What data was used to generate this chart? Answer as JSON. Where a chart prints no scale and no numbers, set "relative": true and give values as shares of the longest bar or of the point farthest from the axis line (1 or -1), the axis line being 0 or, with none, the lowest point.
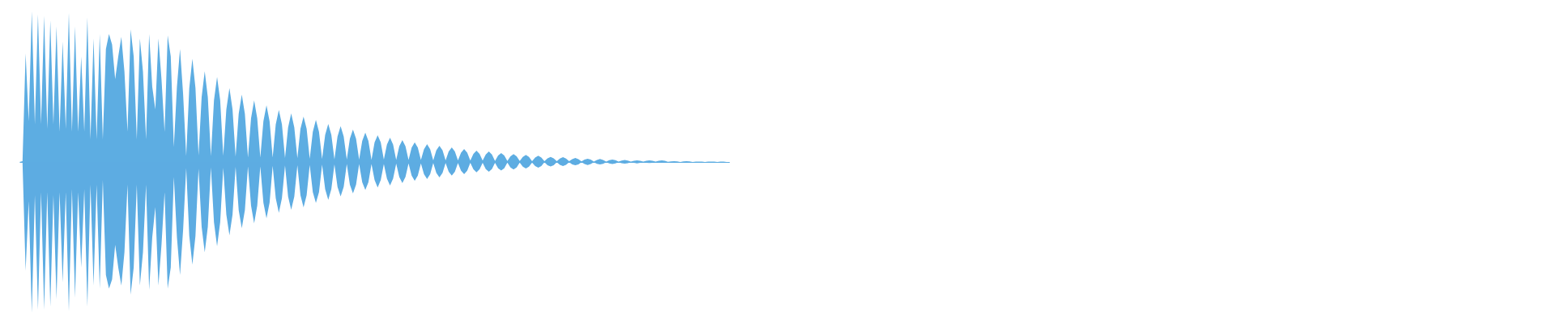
{
  "chart_data": {
    "type": "area",
    "relative": true,
    "categories": [
      null,
      null,
      null,
      null,
      null,
      null,
      null,
      null,
      null,
      null,
      null,
      null,
      null,
      null,
      null,
      null,
      null,
      null,
      null,
      null,
      null,
      null,
      null,
      null,
      null,
      null,
      null,
      null,
      null,
      null,
      null,
      null,
      null,
      null,
      null,
      null,
      null,
      null,
      null,
      null,
      null,
      null,
      null,
      null,
      null,
      null,
      null,
      null,
      null,
      null,
      null,
      null,
      null,
      null,
      null,
      null,
      null,
      null,
      null,
      null,
      null,
      null,
      null,
      null,
      null,
      null,
      null,
      null,
      null,
      null,
      null,
      null,
      null,
      null,
      null,
      null,
      null,
      null,
      null,
      null,
      null,
      null,
      null,
      null,
      null,
      null,
      null,
      null,
      null,
      null,
      null,
      null,
      null,
      null,
      null,
      null,
      null,
      null,
      null,
      null,
      null,
      null,
      null,
      null,
      null,
      null,
      null,
      null,
      null,
      null,
      null,
      null,
      null,
      null,
      null,
      null,
      null,
      null,
      null,
      null,
      null,
      null,
      null,
      null,
      null,
      null,
      null,
      null,
      null,
      null,
      null,
      null,
      null,
      null,
      null,
      null,
      null,
      null,
      null,
      null,
      null,
      null,
      null,
      null,
      null,
      null,
      null,
      null,
      null,
      null,
      null,
      null,
      null,
      null,
      null,
      null,
      null,
      null,
      null,
      null,
      null,
      null,
      null,
      null,
      null,
      null,
      null,
      null,
      null,
      null,
      null,
      null,
      null,
      null,
      null,
      null,
      null,
      null,
      null,
      null,
      null,
      null,
      null,
      null,
      null,
      null,
      null,
      null,
      null,
      null,
      null,
      null,
      null,
      null,
      null,
      null,
      null,
      null,
      null,
      null,
      null,
      null,
      null,
      null,
      null,
      null,
      null,
      null,
      null,
      null,
      null,
      null,
      null,
      null,
      null,
      null,
      null,
      null,
      null,
      null,
      null,
      null,
      null,
      null,
      null,
      null,
      null,
      null,
      null,
      null,
      null
    ],
    "series": [
      {
        "color": "#5dade2",
        "values": [
          0,
          0.005,
          0.72,
          0.27,
          1.0,
          0.25,
          0.98,
          0.25,
          0.97,
          0.22,
          0.94,
          0.25,
          0.9,
          0.2,
          0.8,
          0.22,
          0.99,
          0.2,
          0.9,
          0.2,
          0.7,
          0.2,
          0.96,
          0.15,
          0.82,
          0.15,
          0.85,
          0.15,
          0.75,
          0.85,
          0.78,
          0.55,
          0.7,
          0.83,
          0.6,
          0.2,
          0.88,
          0.7,
          0.15,
          0.82,
          0.6,
          0.15,
          0.85,
          0.5,
          0.35,
          0.82,
          0.55,
          0.2,
          0.84,
          0.7,
          0.1,
          0.5,
          0.75,
          0.45,
          0.04,
          0.49,
          0.685,
          0.49,
          0.045,
          0.43,
          0.602,
          0.43,
          0.039,
          0.41,
          0.565,
          0.41,
          0.041,
          0.35,
          0.491,
          0.35,
          0.036,
          0.32,
          0.448,
          0.32,
          0.03,
          0.29,
          0.409,
          0.29,
          0.03,
          0.27,
          0.376,
          0.27,
          0.029,
          0.25,
          0.346,
          0.25,
          0.027,
          0.23,
          0.323,
          0.23,
          0.025,
          0.22,
          0.301,
          0.22,
          0.022,
          0.2,
          0.28,
          0.2,
          0.02,
          0.18,
          0.253,
          0.18,
          0.018,
          0.17,
          0.238,
          0.17,
          0.016,
          0.155,
          0.215,
          0.155,
          0.016,
          0.14,
          0.195,
          0.14,
          0.014,
          0.13,
          0.178,
          0.13,
          0.016,
          0.115,
          0.161,
          0.115,
          0.014,
          0.105,
          0.145,
          0.105,
          0.013,
          0.095,
          0.131,
          0.095,
          0.013,
          0.085,
          0.118,
          0.085,
          0.011,
          0.078,
          0.108,
          0.078,
          0.011,
          0.07,
          0.097,
          0.07,
          0.011,
          0.062,
          0.086,
          0.062,
          0.009,
          0.054,
          0.075,
          0.054,
          0.009,
          0.05,
          0.07,
          0.05,
          0.007,
          0.043,
          0.059,
          0.043,
          0.007,
          0.037,
          0.052,
          0.037,
          0.007,
          0.034,
          0.047,
          0.034,
          0.005,
          0.03,
          0.041,
          0.03,
          0.005,
          0.024,
          0.034,
          0.024,
          0.005,
          0.023,
          0.032,
          0.023,
          0.005,
          0.019,
          0.027,
          0.019,
          0.004,
          0.016,
          0.022,
          0.016,
          0.003,
          0.014,
          0.02,
          0.014,
          0.003,
          0.012,
          0.016,
          0.012,
          0.003,
          0.01,
          0.014,
          0.01,
          0.003,
          0.008,
          0.011,
          0.008,
          0.003,
          0.008,
          0.011,
          0.008,
          0.003,
          0.008,
          0.011,
          0.008,
          0.002,
          0.004,
          0.005,
          0.004,
          0,
          0.004,
          0.005,
          0.004,
          0,
          0.003,
          0.003,
          0.003,
          0,
          0.003,
          0.003,
          0.003,
          0,
          0.003,
          0.003,
          0,
          0
        ]
      },
      {
        "color": "#5dace2",
        "values": [
          0,
          -0.005,
          -0.72,
          -0.26,
          -1.0,
          -0.22,
          -0.98,
          -0.2,
          -0.98,
          -0.2,
          -0.96,
          -0.22,
          -0.91,
          -0.2,
          -0.8,
          -0.2,
          -0.99,
          -0.18,
          -0.9,
          -0.2,
          -0.7,
          -0.18,
          -0.96,
          -0.15,
          -0.82,
          -0.15,
          -0.84,
          -0.12,
          -0.75,
          -0.84,
          -0.78,
          -0.55,
          -0.7,
          -0.82,
          -0.6,
          -0.15,
          -0.88,
          -0.7,
          -0.15,
          -0.82,
          -0.6,
          -0.15,
          -0.85,
          -0.5,
          -0.3,
          -0.82,
          -0.55,
          -0.2,
          -0.84,
          -0.7,
          -0.1,
          -0.5,
          -0.75,
          -0.45,
          -0.04,
          -0.49,
          -0.681,
          -0.49,
          -0.045,
          -0.43,
          -0.6,
          -0.43,
          -0.036,
          -0.4,
          -0.559,
          -0.4,
          -0.039,
          -0.35,
          -0.487,
          -0.35,
          -0.032,
          -0.32,
          -0.439,
          -0.32,
          -0.03,
          -0.29,
          -0.407,
          -0.29,
          -0.029,
          -0.27,
          -0.373,
          -0.27,
          -0.025,
          -0.24,
          -0.337,
          -0.24,
          -0.023,
          -0.23,
          -0.317,
          -0.23,
          -0.022,
          -0.22,
          -0.301,
          -0.22,
          -0.02,
          -0.2,
          -0.272,
          -0.2,
          -0.018,
          -0.18,
          -0.251,
          -0.18,
          -0.016,
          -0.165,
          -0.229,
          -0.165,
          -0.014,
          -0.15,
          -0.208,
          -0.15,
          -0.014,
          -0.135,
          -0.186,
          -0.135,
          -0.013,
          -0.12,
          -0.17,
          -0.12,
          -0.013,
          -0.11,
          -0.156,
          -0.11,
          -0.011,
          -0.1,
          -0.14,
          -0.1,
          -0.009,
          -0.09,
          -0.125,
          -0.09,
          -0.009,
          -0.08,
          -0.113,
          -0.08,
          -0.007,
          -0.073,
          -0.102,
          -0.073,
          -0.007,
          -0.065,
          -0.09,
          -0.065,
          -0.007,
          -0.058,
          -0.081,
          -0.058,
          -0.005,
          -0.049,
          -0.068,
          -0.049,
          -0.005,
          -0.047,
          -0.065,
          -0.047,
          -0.005,
          -0.041,
          -0.057,
          -0.041,
          -0.004,
          -0.036,
          -0.05,
          -0.036,
          -0.004,
          -0.031,
          -0.043,
          -0.031,
          -0.004,
          -0.027,
          -0.038,
          -0.027,
          -0.002,
          -0.022,
          -0.03,
          -0.022,
          -0.002,
          -0.019,
          -0.027,
          -0.019,
          -0.002,
          -0.016,
          -0.022,
          -0.016,
          -0.002,
          -0.014,
          -0.02,
          -0.014,
          -0.002,
          -0.012,
          -0.016,
          -0.012,
          -0.002,
          -0.009,
          -0.013,
          -0.009,
          -0.002,
          -0.008,
          -0.011,
          -0.008,
          -0.002,
          -0.006,
          -0.009,
          -0.006,
          -0.002,
          -0.005,
          -0.007,
          -0.005,
          -0.002,
          -0.004,
          -0.005,
          -0.004,
          -0.002,
          -0.004,
          -0.005,
          -0.004,
          0,
          -0.004,
          -0.005,
          -0.004,
          0,
          -0.003,
          -0.003,
          -0.003,
          0,
          -0.003,
          -0.003,
          -0.003,
          0,
          -0.003,
          -0.003,
          0,
          0
        ]
      }
    ]
  }
}
